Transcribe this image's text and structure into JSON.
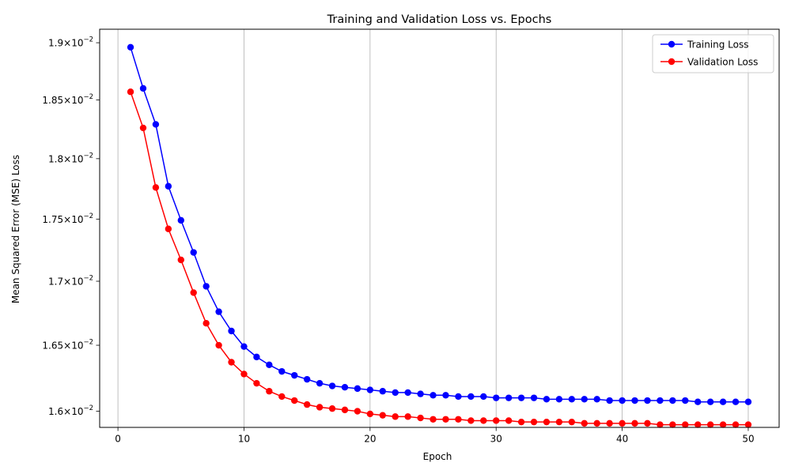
{
  "chart_data": {
    "type": "line",
    "title": "Training and Validation Loss vs. Epochs",
    "xlabel": "Epoch",
    "ylabel": "Mean Squared Error (MSE) Loss",
    "xlim": [
      -1.45,
      52.45
    ],
    "ylim": [
      0.01588,
      0.01912
    ],
    "y_scale": "log",
    "x_ticks": [
      0,
      10,
      20,
      30,
      40,
      50
    ],
    "x_tick_labels": [
      "0",
      "10",
      "20",
      "30",
      "40",
      "50"
    ],
    "y_ticks": [
      0.016,
      0.0165,
      0.017,
      0.0175,
      0.018,
      0.0185,
      0.019
    ],
    "y_tick_labels": [
      {
        "mantissa": "1.6",
        "exponent": "−2"
      },
      {
        "mantissa": "1.65",
        "exponent": "−2"
      },
      {
        "mantissa": "1.7",
        "exponent": "−2"
      },
      {
        "mantissa": "1.75",
        "exponent": "−2"
      },
      {
        "mantissa": "1.8",
        "exponent": "−2"
      },
      {
        "mantissa": "1.85",
        "exponent": "−2"
      },
      {
        "mantissa": "1.9",
        "exponent": "−2"
      }
    ],
    "grid": "x-major",
    "legend_position": "top-right",
    "x": [
      1,
      2,
      3,
      4,
      5,
      6,
      7,
      8,
      9,
      10,
      11,
      12,
      13,
      14,
      15,
      16,
      17,
      18,
      19,
      20,
      21,
      22,
      23,
      24,
      25,
      26,
      27,
      28,
      29,
      30,
      31,
      32,
      33,
      34,
      35,
      36,
      37,
      38,
      39,
      40,
      41,
      42,
      43,
      44,
      45,
      46,
      47,
      48,
      49,
      50
    ],
    "series": [
      {
        "name": "Training Loss",
        "color": "#0000ff",
        "values": [
          0.01896,
          0.0186,
          0.01829,
          0.01777,
          0.01749,
          0.01723,
          0.01696,
          0.01676,
          0.01661,
          0.01649,
          0.01641,
          0.01635,
          0.0163,
          0.01627,
          0.01624,
          0.01621,
          0.01619,
          0.01618,
          0.01617,
          0.01616,
          0.01615,
          0.01614,
          0.01614,
          0.01613,
          0.01612,
          0.01612,
          0.01611,
          0.01611,
          0.01611,
          0.0161,
          0.0161,
          0.0161,
          0.0161,
          0.01609,
          0.01609,
          0.01609,
          0.01609,
          0.01609,
          0.01608,
          0.01608,
          0.01608,
          0.01608,
          0.01608,
          0.01608,
          0.01608,
          0.01607,
          0.01607,
          0.01607,
          0.01607,
          0.01607
        ]
      },
      {
        "name": "Validation Loss",
        "color": "#ff0000",
        "values": [
          0.01857,
          0.01826,
          0.01776,
          0.01742,
          0.01717,
          0.01691,
          0.01667,
          0.0165,
          0.01637,
          0.01628,
          0.01621,
          0.01615,
          0.01611,
          0.01608,
          0.01605,
          0.01603,
          0.01602,
          0.01601,
          0.016,
          0.01598,
          0.01597,
          0.01596,
          0.01596,
          0.01595,
          0.01594,
          0.01594,
          0.01594,
          0.01593,
          0.01593,
          0.01593,
          0.01593,
          0.01592,
          0.01592,
          0.01592,
          0.01592,
          0.01592,
          0.01591,
          0.01591,
          0.01591,
          0.01591,
          0.01591,
          0.01591,
          0.0159,
          0.0159,
          0.0159,
          0.0159,
          0.0159,
          0.0159,
          0.0159,
          0.0159
        ]
      }
    ]
  }
}
